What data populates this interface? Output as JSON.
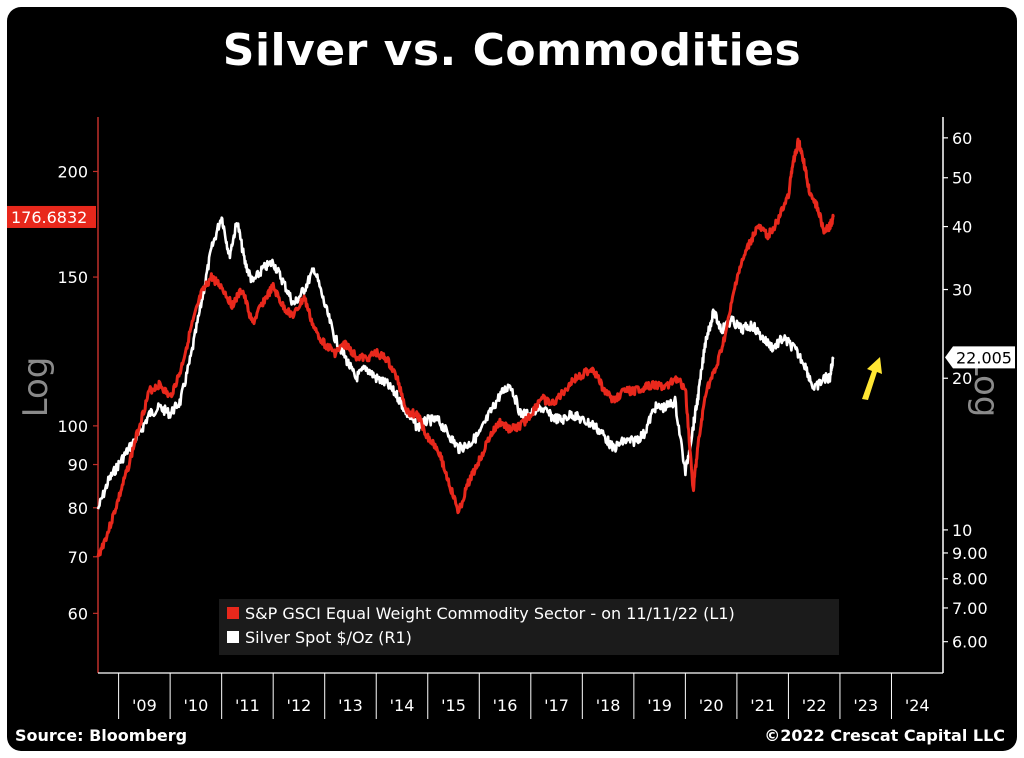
{
  "page": {
    "title": "Silver vs. Commodities",
    "source": "Source: Bloomberg",
    "copyright": "©2022 Crescat Capital LLC"
  },
  "colors": {
    "background": "#000000",
    "commodity_series": "#e8281c",
    "silver_series": "#ffffff",
    "axis_left": "#c0302a",
    "axis_right": "#ffffff",
    "arrow": "#ffe633",
    "log_label": "#8a8a8a"
  },
  "chart_data": {
    "type": "line",
    "title": "Silver vs. Commodities",
    "x_axis": {
      "range": [
        2008.6,
        2025.0
      ],
      "ticks": [
        {
          "label": "'09",
          "value": 2009.5
        },
        {
          "label": "'10",
          "value": 2010.5
        },
        {
          "label": "'11",
          "value": 2011.5
        },
        {
          "label": "'12",
          "value": 2012.5
        },
        {
          "label": "'13",
          "value": 2013.5
        },
        {
          "label": "'14",
          "value": 2014.5
        },
        {
          "label": "'15",
          "value": 2015.5
        },
        {
          "label": "'16",
          "value": 2016.5
        },
        {
          "label": "'17",
          "value": 2017.5
        },
        {
          "label": "'18",
          "value": 2018.5
        },
        {
          "label": "'19",
          "value": 2019.5
        },
        {
          "label": "'20",
          "value": 2020.5
        },
        {
          "label": "'21",
          "value": 2021.5
        },
        {
          "label": "'22",
          "value": 2022.5
        },
        {
          "label": "'23",
          "value": 2023.5
        },
        {
          "label": "'24",
          "value": 2024.5
        }
      ]
    },
    "y_left": {
      "label": "Log",
      "scale": "log",
      "range": [
        51,
        232
      ],
      "ticks": [
        60,
        70,
        80,
        90,
        100,
        150,
        200
      ],
      "last_value_label": "176.6832",
      "last_value": 176.6832
    },
    "y_right": {
      "label": "Log",
      "scale": "log",
      "range": [
        5.2,
        66
      ],
      "ticks": [
        {
          "label": "6.00",
          "value": 6
        },
        {
          "label": "7.00",
          "value": 7
        },
        {
          "label": "8.00",
          "value": 8
        },
        {
          "label": "9.00",
          "value": 9
        },
        {
          "label": "10",
          "value": 10
        },
        {
          "label": "20",
          "value": 20
        },
        {
          "label": "30",
          "value": 30
        },
        {
          "label": "40",
          "value": 40
        },
        {
          "label": "50",
          "value": 50
        },
        {
          "label": "60",
          "value": 60
        }
      ],
      "last_value_label": "22.005",
      "last_value": 22.005
    },
    "legend": {
      "placement": "bottom",
      "entries": [
        {
          "label": "S&P GSCI Equal Weight Commodity Sector -  on 11/11/22  (L1)",
          "color": "#e8281c"
        },
        {
          "label": "Silver Spot $/Oz  (R1)",
          "color": "#ffffff"
        }
      ]
    },
    "series": [
      {
        "name": "S&P GSCI Equal Weight Commodity Sector",
        "axis": "left",
        "x": [
          2008.6,
          2008.8,
          2009.0,
          2009.2,
          2009.4,
          2009.6,
          2009.8,
          2010.0,
          2010.2,
          2010.4,
          2010.6,
          2010.8,
          2011.0,
          2011.2,
          2011.4,
          2011.6,
          2011.8,
          2012.0,
          2012.2,
          2012.4,
          2012.6,
          2012.8,
          2013.0,
          2013.2,
          2013.4,
          2013.6,
          2013.8,
          2014.0,
          2014.2,
          2014.4,
          2014.6,
          2014.8,
          2015.0,
          2015.2,
          2015.4,
          2015.6,
          2015.8,
          2016.0,
          2016.2,
          2016.4,
          2016.6,
          2016.8,
          2017.0,
          2017.2,
          2017.4,
          2017.6,
          2017.8,
          2018.0,
          2018.2,
          2018.4,
          2018.6,
          2018.8,
          2019.0,
          2019.2,
          2019.4,
          2019.6,
          2019.8,
          2020.0,
          2020.15,
          2020.25,
          2020.4,
          2020.6,
          2020.8,
          2021.0,
          2021.2,
          2021.4,
          2021.6,
          2021.8,
          2022.0,
          2022.1,
          2022.2,
          2022.3,
          2022.4,
          2022.55,
          2022.7,
          2022.8,
          2022.87
        ],
        "values": [
          70,
          75,
          82,
          90,
          100,
          110,
          112,
          108,
          116,
          130,
          143,
          150,
          146,
          139,
          145,
          132,
          140,
          146,
          138,
          135,
          142,
          130,
          125,
          122,
          125,
          121,
          120,
          122,
          120,
          114,
          104,
          103,
          97,
          94,
          86,
          79,
          86,
          91,
          97,
          101,
          99,
          100,
          103,
          108,
          106,
          109,
          113,
          115,
          117,
          111,
          107,
          110,
          110,
          111,
          112,
          111,
          114,
          111,
          84,
          95,
          110,
          117,
          130,
          150,
          162,
          172,
          168,
          175,
          188,
          206,
          218,
          205,
          190,
          182,
          170,
          172,
          176.68
        ]
      },
      {
        "name": "Silver Spot $/Oz",
        "axis": "right",
        "x": [
          2008.6,
          2008.8,
          2009.0,
          2009.2,
          2009.4,
          2009.6,
          2009.8,
          2010.0,
          2010.2,
          2010.4,
          2010.6,
          2010.8,
          2011.0,
          2011.15,
          2011.3,
          2011.45,
          2011.6,
          2011.8,
          2012.0,
          2012.2,
          2012.4,
          2012.6,
          2012.8,
          2013.0,
          2013.2,
          2013.4,
          2013.6,
          2013.8,
          2014.0,
          2014.2,
          2014.4,
          2014.6,
          2014.8,
          2015.0,
          2015.2,
          2015.4,
          2015.6,
          2015.8,
          2016.0,
          2016.2,
          2016.4,
          2016.6,
          2016.8,
          2017.0,
          2017.2,
          2017.4,
          2017.6,
          2017.8,
          2018.0,
          2018.2,
          2018.4,
          2018.6,
          2018.8,
          2019.0,
          2019.2,
          2019.4,
          2019.6,
          2019.8,
          2020.0,
          2020.15,
          2020.25,
          2020.4,
          2020.55,
          2020.7,
          2020.9,
          2021.1,
          2021.3,
          2021.5,
          2021.7,
          2021.9,
          2022.1,
          2022.3,
          2022.5,
          2022.7,
          2022.8,
          2022.87
        ],
        "values": [
          11,
          12.5,
          13.5,
          14.5,
          15.5,
          17,
          17.5,
          17,
          18,
          22,
          28,
          36,
          42,
          35,
          41,
          34,
          31,
          33,
          34,
          31,
          28,
          30,
          33,
          28,
          24,
          22,
          20,
          21,
          20,
          19.5,
          18.5,
          17,
          16,
          16.5,
          16.5,
          15.5,
          14.5,
          14.8,
          15.5,
          17,
          18.5,
          19.5,
          17,
          17,
          17.5,
          16.8,
          16.5,
          17,
          16.5,
          16.2,
          15.5,
          14.5,
          15,
          15,
          15.5,
          17.5,
          17.5,
          18,
          13,
          16,
          18.5,
          24,
          27,
          25,
          26,
          25,
          25.5,
          24,
          23,
          24,
          23,
          21.5,
          19,
          20,
          20,
          22.0
        ]
      }
    ]
  }
}
